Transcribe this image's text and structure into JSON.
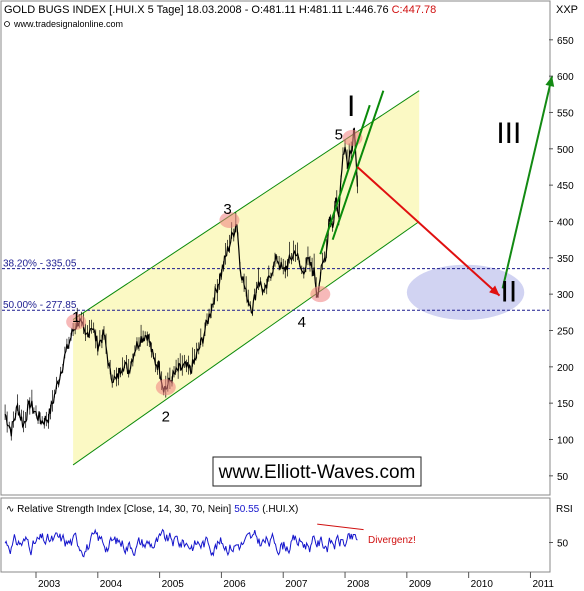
{
  "header": {
    "title": "GOLD BUGS INDEX [.HUI.X  5 Tage] 18.03.2008 - O:481.11 H:481.11 L:446.76",
    "close_value": "C:447.78",
    "source": "www.tradesignalonline.com",
    "axis_symbol": "XXP"
  },
  "watermark": "www.Elliott-Waves.com",
  "chart_data": [
    {
      "type": "line",
      "title": "GOLD BUGS INDEX [.HUI.X  5 Tage]",
      "x_ticks": [
        "2003",
        "2004",
        "2005",
        "2006",
        "2007",
        "2008",
        "2009",
        "2010",
        "2011"
      ],
      "y_ticks": [
        50,
        100,
        150,
        200,
        250,
        300,
        350,
        400,
        450,
        500,
        550,
        600,
        650
      ],
      "ylim": [
        25,
        680
      ],
      "xlim": [
        2002.45,
        2011.3
      ],
      "series": [
        {
          "values": [
            [
              2002.5,
              135
            ],
            [
              2002.6,
              112
            ],
            [
              2002.7,
              145
            ],
            [
              2002.8,
              120
            ],
            [
              2002.9,
              150
            ],
            [
              2003.0,
              135
            ],
            [
              2003.1,
              125
            ],
            [
              2003.2,
              130
            ],
            [
              2003.3,
              160
            ],
            [
              2003.45,
              210
            ],
            [
              2003.6,
              250
            ],
            [
              2003.7,
              265
            ],
            [
              2003.8,
              240
            ],
            [
              2003.9,
              258
            ],
            [
              2004.0,
              230
            ],
            [
              2004.1,
              245
            ],
            [
              2004.2,
              190
            ],
            [
              2004.3,
              180
            ],
            [
              2004.4,
              205
            ],
            [
              2004.5,
              195
            ],
            [
              2004.6,
              225
            ],
            [
              2004.7,
              240
            ],
            [
              2004.8,
              245
            ],
            [
              2004.85,
              230
            ],
            [
              2004.9,
              210
            ],
            [
              2005.0,
              200
            ],
            [
              2005.05,
              175
            ],
            [
              2005.1,
              170
            ],
            [
              2005.2,
              185
            ],
            [
              2005.3,
              195
            ],
            [
              2005.4,
              200
            ],
            [
              2005.5,
              195
            ],
            [
              2005.6,
              215
            ],
            [
              2005.7,
              240
            ],
            [
              2005.8,
              270
            ],
            [
              2005.9,
              300
            ],
            [
              2006.0,
              330
            ],
            [
              2006.1,
              360
            ],
            [
              2006.25,
              400
            ],
            [
              2006.3,
              340
            ],
            [
              2006.4,
              300
            ],
            [
              2006.5,
              280
            ],
            [
              2006.6,
              320
            ],
            [
              2006.7,
              300
            ],
            [
              2006.8,
              330
            ],
            [
              2006.9,
              350
            ],
            [
              2007.0,
              330
            ],
            [
              2007.1,
              345
            ],
            [
              2007.2,
              360
            ],
            [
              2007.3,
              330
            ],
            [
              2007.4,
              345
            ],
            [
              2007.5,
              330
            ],
            [
              2007.55,
              300
            ],
            [
              2007.6,
              325
            ],
            [
              2007.7,
              360
            ],
            [
              2007.75,
              410
            ],
            [
              2007.8,
              390
            ],
            [
              2007.85,
              430
            ],
            [
              2007.9,
              415
            ],
            [
              2007.95,
              480
            ],
            [
              2008.0,
              510
            ],
            [
              2008.05,
              470
            ],
            [
              2008.1,
              500
            ],
            [
              2008.15,
              520
            ],
            [
              2008.2,
              448
            ]
          ]
        }
      ]
    },
    {
      "type": "line",
      "title": "Relative Strength Index [Close, 14, 30, 70, Nein]",
      "series": [
        {
          "name": "RSI",
          "last_value": "50.55",
          "suffix": "(.HUI.X)"
        }
      ],
      "y_ticks": [
        50
      ],
      "ylim": [
        20,
        80
      ],
      "axis_label": "RSI"
    }
  ],
  "channel": {
    "upper_line": [
      [
        2003.6,
        265
      ],
      [
        2009.2,
        580
      ]
    ],
    "lower_line": [
      [
        2003.6,
        65
      ],
      [
        2009.2,
        400
      ]
    ],
    "fill": "#fbf9c4",
    "line_color": "#0a8a0a"
  },
  "fib_levels": [
    {
      "label": "38.20% - 335.05",
      "value": 335.05
    },
    {
      "label": "50.00% - 277.85",
      "value": 277.85
    }
  ],
  "target_zone": {
    "x": [
      2009.0,
      2010.9
    ],
    "y": [
      270,
      335
    ],
    "color": "#c9cbf0"
  },
  "wave_labels": [
    {
      "text": "1",
      "x": 2003.65,
      "y": 262
    },
    {
      "text": "2",
      "x": 2005.1,
      "y": 125
    },
    {
      "text": "3",
      "x": 2006.1,
      "y": 410
    },
    {
      "text": "4",
      "x": 2007.3,
      "y": 255
    },
    {
      "text": "5",
      "x": 2007.9,
      "y": 513
    },
    {
      "text": "I",
      "x": 2008.1,
      "y": 545
    },
    {
      "text": "II",
      "x": 2010.65,
      "y": 290
    },
    {
      "text": "III",
      "x": 2010.65,
      "y": 508
    }
  ],
  "pivot_markers": [
    {
      "x": 2003.65,
      "y": 262
    },
    {
      "x": 2005.1,
      "y": 172
    },
    {
      "x": 2006.13,
      "y": 402
    },
    {
      "x": 2007.6,
      "y": 300
    },
    {
      "x": 2008.12,
      "y": 515
    }
  ],
  "arrows": [
    {
      "from": [
        2008.2,
        475
      ],
      "to": [
        2010.5,
        298
      ],
      "color": "#e01010"
    },
    {
      "from": [
        2010.55,
        308
      ],
      "to": [
        2011.35,
        600
      ],
      "color": "#138a13"
    }
  ],
  "trend_lines": [
    {
      "from": [
        2007.8,
        375
      ],
      "to": [
        2008.62,
        580
      ]
    },
    {
      "from": [
        2007.6,
        355
      ],
      "to": [
        2008.4,
        560
      ]
    }
  ],
  "rsi_annotation": "Divergenz!",
  "colors": {
    "price": "#000000",
    "rsi": "#1515cc",
    "fib": "#1c1c8f",
    "annotation": "#d01010"
  }
}
